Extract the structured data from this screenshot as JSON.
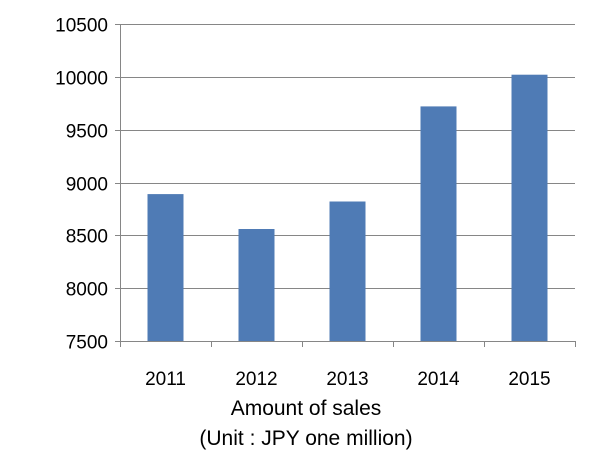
{
  "chart_data": {
    "type": "bar",
    "categories": [
      "2011",
      "2012",
      "2013",
      "2014",
      "2015"
    ],
    "values": [
      8890,
      8560,
      8820,
      9720,
      10020
    ],
    "title": "",
    "xlabel": "Amount of sales",
    "xlabel_sub": "(Unit : JPY one million)",
    "ylabel": "",
    "ylim": [
      7500,
      10500
    ],
    "yticks": [
      7500,
      8000,
      8500,
      9000,
      9500,
      10000,
      10500
    ],
    "grid": true,
    "legend": "none",
    "colors": {
      "bar": "#4F7BB5",
      "grid": "#868686",
      "axis": "#868686"
    }
  }
}
